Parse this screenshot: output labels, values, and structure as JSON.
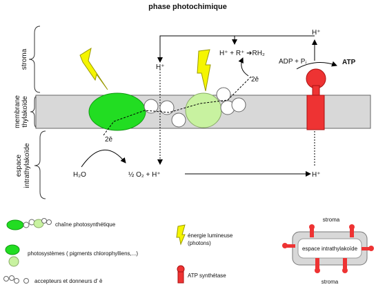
{
  "title": "phase photochimique",
  "zones": {
    "stroma": "stroma",
    "membrane_line1": "membrane",
    "membrane_line2": "thylakoïde",
    "lumen_line1": "espace",
    "lumen_line2": "intrathylakoïde"
  },
  "reaction": {
    "h_top_left": "H⁺",
    "h_top_right": "H⁺",
    "nadp_reduction": "H⁺ + R⁺ ➔RH₂",
    "two_e_top": "2ē",
    "adp": "ADP + Pᵢ",
    "atp": "ATP",
    "two_e_bottom": "2ē",
    "water": "H₂O",
    "oxygen_proton": "½ O₂ + H⁺",
    "h_bottom_right": "H⁺"
  },
  "legend": {
    "chain": "chaîne photosynthétique",
    "photosystems": "photosystèmes ( pigments chlorophylliens,...)",
    "carriers": "accepteurs et donneurs d' ē",
    "light_line1": "énergie lumineuse",
    "light_line2": "(photons)",
    "atp_synthase": "ATP synthétase",
    "inset_top": "stroma",
    "inset_center": "espace intrathylakoïde",
    "inset_bottom": "stroma"
  },
  "colors": {
    "ps1": "#22dd22",
    "ps2": "#c8f2a0",
    "membrane": "#d8d8d8",
    "lightning": "#f5f500",
    "atp_synthase": "#ee3333"
  }
}
